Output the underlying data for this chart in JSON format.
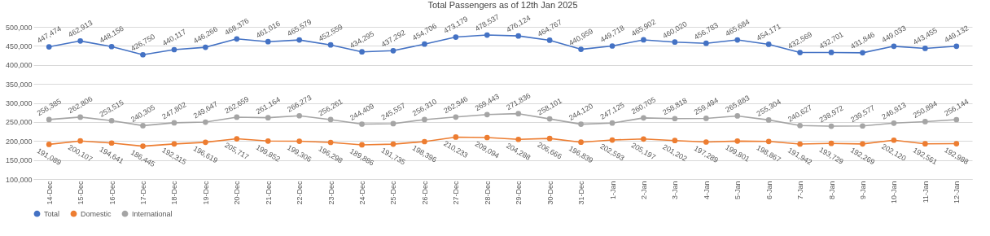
{
  "chart_data": {
    "type": "line",
    "title": "Total Passengers as of 12th Jan 2025",
    "categories": [
      "14-Dec",
      "15-Dec",
      "16-Dec",
      "17-Dec",
      "18-Dec",
      "19-Dec",
      "20-Dec",
      "21-Dec",
      "22-Dec",
      "23-Dec",
      "24-Dec",
      "25-Dec",
      "26-Dec",
      "27-Dec",
      "28-Dec",
      "29-Dec",
      "30-Dec",
      "31-Dec",
      "1-Jan",
      "2-Jan",
      "3-Jan",
      "4-Jan",
      "5-Jan",
      "6-Jan",
      "7-Jan",
      "8-Jan",
      "9-Jan",
      "10-Jan",
      "11-Jan",
      "12-Jan"
    ],
    "series": [
      {
        "name": "Total",
        "color": "#4472c4",
        "values": [
          447474,
          462913,
          448156,
          426750,
          440117,
          446266,
          468376,
          461016,
          465579,
          452559,
          434295,
          437292,
          454706,
          473179,
          478537,
          476124,
          464767,
          440959,
          449718,
          465902,
          460020,
          456783,
          465684,
          454171,
          432569,
          432701,
          431846,
          449033,
          443455,
          449132
        ],
        "value_labels": [
          "447,474",
          "462,913",
          "448,156",
          "426,750",
          "440,117",
          "446,266",
          "468,376",
          "461,016",
          "465,579",
          "452,559",
          "434,295",
          "437,292",
          "454,706",
          "473,179",
          "478,537",
          "476,124",
          "464,767",
          "440,959",
          "449,718",
          "465,902",
          "460,020",
          "456,783",
          "465,684",
          "454,171",
          "432,569",
          "432,701",
          "431,846",
          "449,033",
          "443,455",
          "449,132"
        ]
      },
      {
        "name": "Domestic",
        "color": "#ed7d31",
        "values": [
          191089,
          200107,
          194641,
          186445,
          192315,
          196619,
          205717,
          199852,
          199306,
          196298,
          189886,
          191735,
          198396,
          210233,
          209094,
          204288,
          206666,
          196839,
          202593,
          205197,
          201202,
          197289,
          199801,
          198867,
          191942,
          193729,
          192269,
          202120,
          192561,
          192988
        ],
        "value_labels": [
          "191,089",
          "200,107",
          "194,641",
          "186,445",
          "192,315",
          "196,619",
          "205,717",
          "199,852",
          "199,306",
          "196,298",
          "189,886",
          "191,735",
          "198,396",
          "210,233",
          "209,094",
          "204,288",
          "206,666",
          "196,839",
          "202,593",
          "205,197",
          "201,202",
          "197,289",
          "199,801",
          "198,867",
          "191,942",
          "193,729",
          "192,269",
          "202,120",
          "192,561",
          "192,988"
        ]
      },
      {
        "name": "International",
        "color": "#a5a5a5",
        "values": [
          256385,
          262806,
          253515,
          240305,
          247802,
          249647,
          262659,
          261164,
          266273,
          256261,
          244409,
          245557,
          256310,
          262946,
          269443,
          271836,
          258101,
          244120,
          247125,
          260705,
          258818,
          259494,
          265883,
          255304,
          240627,
          238972,
          239577,
          246913,
          250894,
          256144
        ],
        "value_labels": [
          "256,385",
          "262,806",
          "253,515",
          "240,305",
          "247,802",
          "249,647",
          "262,659",
          "261,164",
          "266,273",
          "256,261",
          "244,409",
          "245,557",
          "256,310",
          "262,946",
          "269,443",
          "271,836",
          "258,101",
          "244,120",
          "247,125",
          "260,705",
          "258,818",
          "259,494",
          "265,883",
          "255,304",
          "240,627",
          "238,972",
          "239,577",
          "246,913",
          "250,894",
          "256,144"
        ]
      }
    ],
    "ylim": [
      100000,
      500000
    ],
    "yticks": [
      {
        "value": 100000,
        "label": "100,000"
      },
      {
        "value": 150000,
        "label": "150,000"
      },
      {
        "value": 200000,
        "label": "200,000"
      },
      {
        "value": 250000,
        "label": "250,000"
      },
      {
        "value": 300000,
        "label": "300,000"
      },
      {
        "value": 350000,
        "label": "350,000"
      },
      {
        "value": 400000,
        "label": "400,000"
      },
      {
        "value": 450000,
        "label": "450,000"
      },
      {
        "value": 500000,
        "label": "500,000"
      }
    ],
    "grid": "y",
    "legend": "bottom",
    "marker": "circle"
  }
}
